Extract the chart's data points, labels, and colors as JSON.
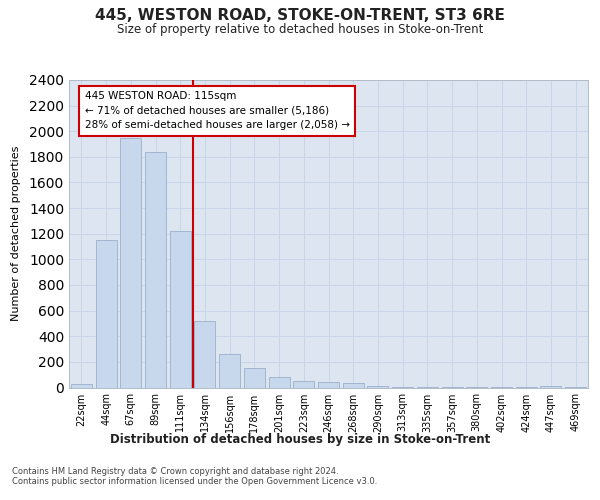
{
  "title": "445, WESTON ROAD, STOKE-ON-TRENT, ST3 6RE",
  "subtitle": "Size of property relative to detached houses in Stoke-on-Trent",
  "xlabel": "Distribution of detached houses by size in Stoke-on-Trent",
  "ylabel": "Number of detached properties",
  "categories": [
    "22sqm",
    "44sqm",
    "67sqm",
    "89sqm",
    "111sqm",
    "134sqm",
    "156sqm",
    "178sqm",
    "201sqm",
    "223sqm",
    "246sqm",
    "268sqm",
    "290sqm",
    "313sqm",
    "335sqm",
    "357sqm",
    "380sqm",
    "402sqm",
    "424sqm",
    "447sqm",
    "469sqm"
  ],
  "values": [
    30,
    1155,
    1950,
    1840,
    1220,
    520,
    265,
    150,
    80,
    50,
    40,
    35,
    10,
    5,
    5,
    2,
    2,
    2,
    2,
    15,
    2
  ],
  "bar_color": "#c8d8ec",
  "bar_edge_color": "#9ab0cc",
  "red_line_after_index": 4,
  "annotation_line1": "445 WESTON ROAD: 115sqm",
  "annotation_line2": "← 71% of detached houses are smaller (5,186)",
  "annotation_line3": "28% of semi-detached houses are larger (2,058) →",
  "annotation_box_facecolor": "#ffffff",
  "annotation_box_edgecolor": "#cc0000",
  "ylim_max": 2400,
  "yticks": [
    0,
    200,
    400,
    600,
    800,
    1000,
    1200,
    1400,
    1600,
    1800,
    2000,
    2200,
    2400
  ],
  "grid_color": "#c8d4e8",
  "plot_bg_color": "#dde6f0",
  "fig_bg_color": "#ffffff",
  "footer_line1": "Contains HM Land Registry data © Crown copyright and database right 2024.",
  "footer_line2": "Contains public sector information licensed under the Open Government Licence v3.0."
}
